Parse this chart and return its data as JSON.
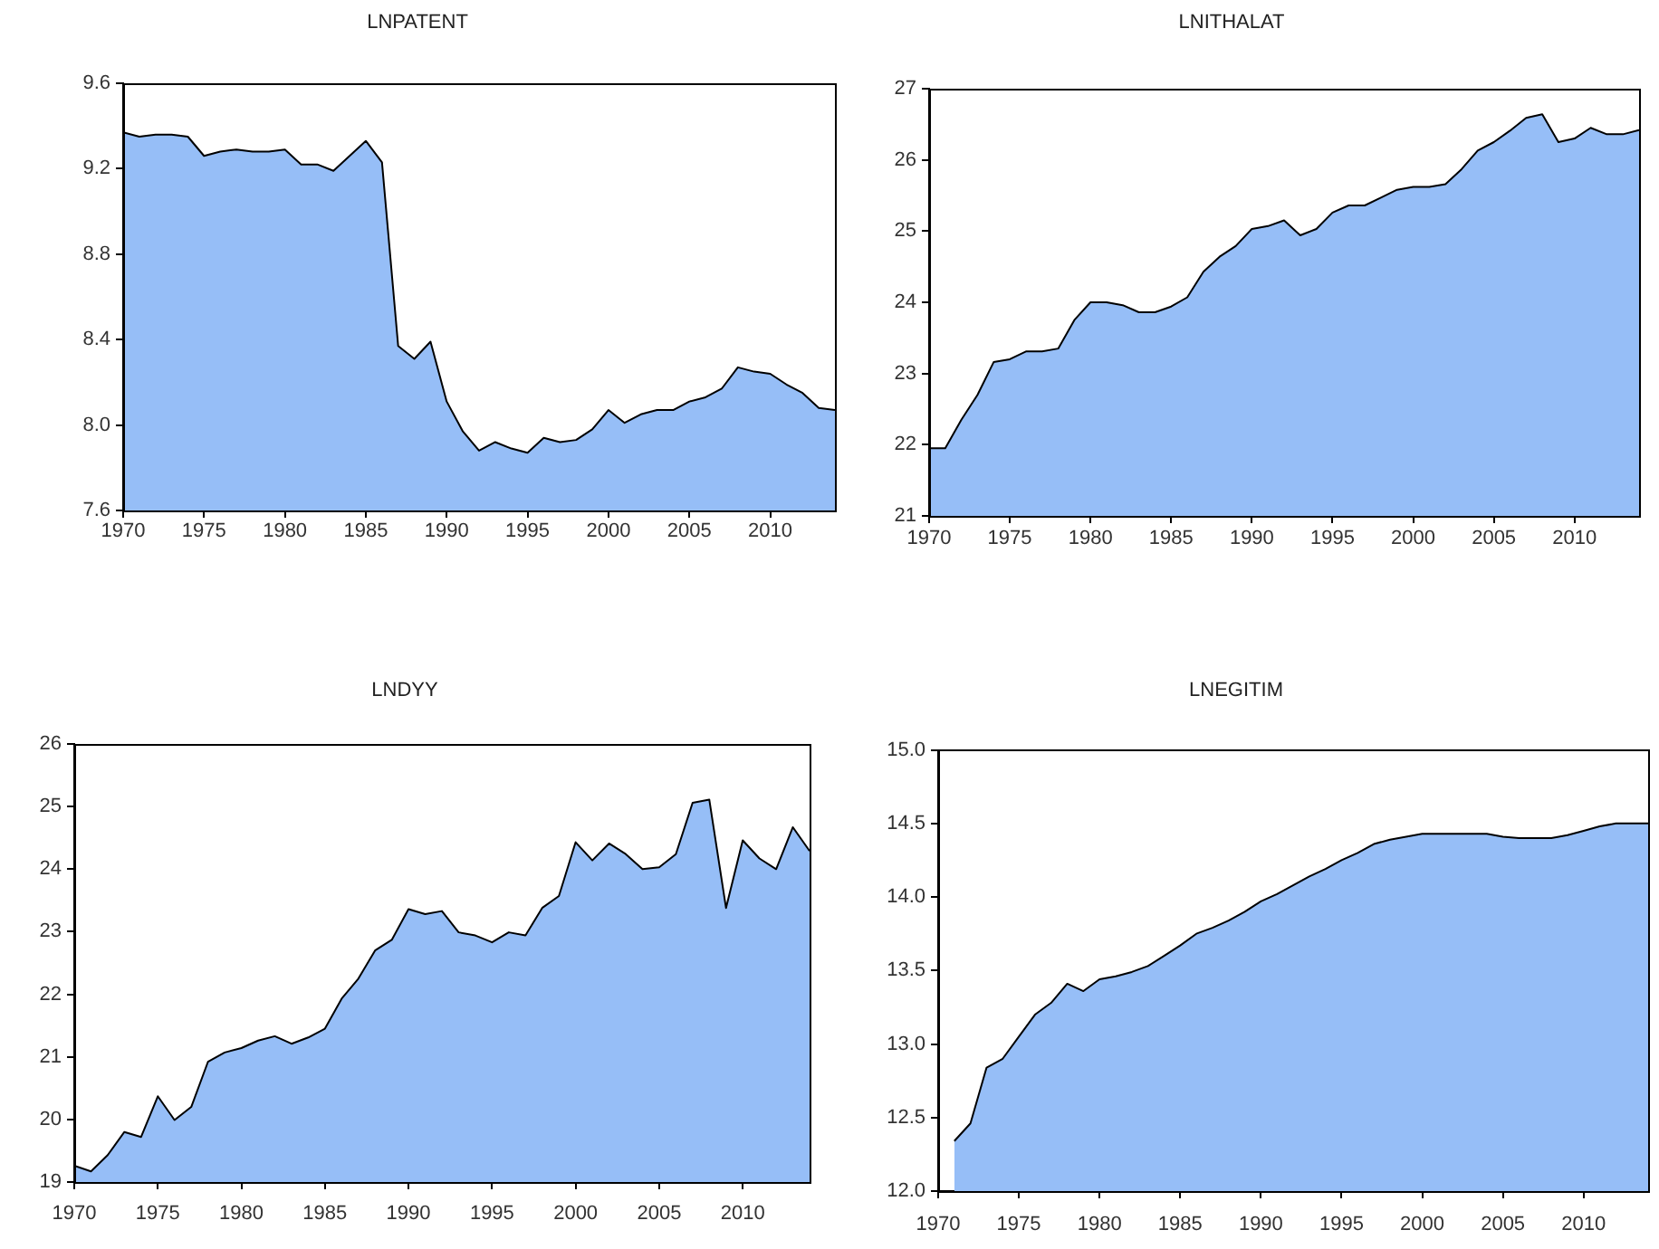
{
  "chart_data": [
    {
      "type": "area",
      "title": "LNPATENT",
      "color": "#96bef7",
      "x": [
        1970,
        1971,
        1972,
        1973,
        1974,
        1975,
        1976,
        1977,
        1978,
        1979,
        1980,
        1981,
        1982,
        1983,
        1984,
        1985,
        1986,
        1987,
        1988,
        1989,
        1990,
        1991,
        1992,
        1993,
        1994,
        1995,
        1996,
        1997,
        1998,
        1999,
        2000,
        2001,
        2002,
        2003,
        2004,
        2005,
        2006,
        2007,
        2008,
        2009,
        2010,
        2011,
        2012,
        2013,
        2014
      ],
      "values": [
        9.37,
        9.35,
        9.36,
        9.36,
        9.35,
        9.26,
        9.28,
        9.29,
        9.28,
        9.28,
        9.29,
        9.22,
        9.22,
        9.19,
        9.26,
        9.33,
        9.23,
        8.37,
        8.31,
        8.39,
        8.11,
        7.97,
        7.88,
        7.92,
        7.89,
        7.87,
        7.94,
        7.92,
        7.93,
        7.98,
        8.07,
        8.01,
        8.05,
        8.07,
        8.07,
        8.11,
        8.13,
        8.17,
        8.27,
        8.25,
        8.24,
        8.19,
        8.15,
        8.08,
        8.07
      ],
      "xlim": [
        1970,
        2014
      ],
      "xticks": [
        1970,
        1975,
        1980,
        1985,
        1990,
        1995,
        2000,
        2005,
        2010
      ],
      "ylim": [
        7.6,
        9.6
      ],
      "yticks": [
        7.6,
        {
          "value": 8,
          "label": "8.0"
        },
        8.4,
        8.8,
        9.2,
        9.6
      ]
    },
    {
      "type": "area",
      "title": "LNITHALAT",
      "color": "#96bef7",
      "x": [
        1970,
        1971,
        1972,
        1973,
        1974,
        1975,
        1976,
        1977,
        1978,
        1979,
        1980,
        1981,
        1982,
        1983,
        1984,
        1985,
        1986,
        1987,
        1988,
        1989,
        1990,
        1991,
        1992,
        1993,
        1994,
        1995,
        1996,
        1997,
        1998,
        1999,
        2000,
        2001,
        2002,
        2003,
        2004,
        2005,
        2006,
        2007,
        2008,
        2009,
        2010,
        2011,
        2012,
        2013,
        2014
      ],
      "values": [
        21.95,
        21.95,
        22.35,
        22.7,
        23.16,
        23.2,
        23.31,
        23.31,
        23.35,
        23.75,
        24.0,
        24.0,
        23.96,
        23.86,
        23.86,
        23.94,
        24.07,
        24.43,
        24.64,
        24.79,
        25.03,
        25.07,
        25.15,
        24.94,
        25.03,
        25.26,
        25.36,
        25.36,
        25.47,
        25.58,
        25.62,
        25.62,
        25.66,
        25.87,
        26.13,
        26.25,
        26.41,
        26.59,
        26.64,
        26.25,
        26.3,
        26.45,
        26.36,
        26.36,
        26.42
      ],
      "xlim": [
        1970,
        2014
      ],
      "xticks": [
        1970,
        1975,
        1980,
        1985,
        1990,
        1995,
        2000,
        2005,
        2010
      ],
      "ylim": [
        21,
        27
      ],
      "yticks": [
        21,
        22,
        23,
        24,
        25,
        26,
        27
      ]
    },
    {
      "type": "area",
      "title": "LNDYY",
      "color": "#96bef7",
      "x": [
        1970,
        1971,
        1972,
        1973,
        1974,
        1975,
        1976,
        1977,
        1978,
        1979,
        1980,
        1981,
        1982,
        1983,
        1984,
        1985,
        1986,
        1987,
        1988,
        1989,
        1990,
        1991,
        1992,
        1993,
        1994,
        1995,
        1996,
        1997,
        1998,
        1999,
        2000,
        2001,
        2002,
        2003,
        2004,
        2005,
        2006,
        2007,
        2008,
        2009,
        2010,
        2011,
        2012,
        2013,
        2014
      ],
      "values": [
        19.26,
        19.17,
        19.43,
        19.8,
        19.72,
        20.37,
        19.99,
        20.2,
        20.92,
        21.07,
        21.14,
        21.26,
        21.33,
        21.21,
        21.31,
        21.45,
        21.93,
        22.25,
        22.7,
        22.87,
        23.36,
        23.28,
        23.33,
        22.99,
        22.94,
        22.83,
        22.99,
        22.94,
        23.38,
        23.57,
        24.43,
        24.14,
        24.41,
        24.24,
        24.0,
        24.03,
        24.24,
        25.06,
        25.11,
        23.38,
        24.46,
        24.17,
        24.0,
        24.67,
        24.29
      ],
      "xlim": [
        1970,
        2014
      ],
      "xticks": [
        1970,
        1975,
        1980,
        1985,
        1990,
        1995,
        2000,
        2005,
        2010
      ],
      "ylim": [
        19,
        26
      ],
      "yticks": [
        19,
        20,
        21,
        22,
        23,
        24,
        25,
        26
      ]
    },
    {
      "type": "area",
      "title": "LNEGITIM",
      "color": "#96bef7",
      "x": [
        1971,
        1972,
        1973,
        1974,
        1975,
        1976,
        1977,
        1978,
        1979,
        1980,
        1981,
        1982,
        1983,
        1984,
        1985,
        1986,
        1987,
        1988,
        1989,
        1990,
        1991,
        1992,
        1993,
        1994,
        1995,
        1996,
        1997,
        1998,
        1999,
        2000,
        2001,
        2002,
        2003,
        2004,
        2005,
        2006,
        2007,
        2008,
        2009,
        2010,
        2011,
        2012,
        2013,
        2014
      ],
      "values": [
        12.34,
        12.46,
        12.84,
        12.9,
        13.05,
        13.2,
        13.28,
        13.41,
        13.36,
        13.44,
        13.46,
        13.49,
        13.53,
        13.6,
        13.67,
        13.75,
        13.79,
        13.84,
        13.9,
        13.97,
        14.02,
        14.08,
        14.14,
        14.19,
        14.25,
        14.3,
        14.36,
        14.39,
        14.41,
        14.43,
        14.43,
        14.43,
        14.43,
        14.43,
        14.41,
        14.4,
        14.4,
        14.4,
        14.42,
        14.45,
        14.48,
        14.5,
        14.5,
        14.5
      ],
      "xlim": [
        1970,
        2014
      ],
      "xticks": [
        1970,
        1975,
        1980,
        1985,
        1990,
        1995,
        2000,
        2005,
        2010
      ],
      "ylim": [
        12,
        15
      ],
      "yticks": [
        {
          "value": 12,
          "label": "12.0"
        },
        12.5,
        {
          "value": 13,
          "label": "13.0"
        },
        13.5,
        {
          "value": 14,
          "label": "14.0"
        },
        14.5,
        {
          "value": 15,
          "label": "15.0"
        }
      ]
    }
  ]
}
